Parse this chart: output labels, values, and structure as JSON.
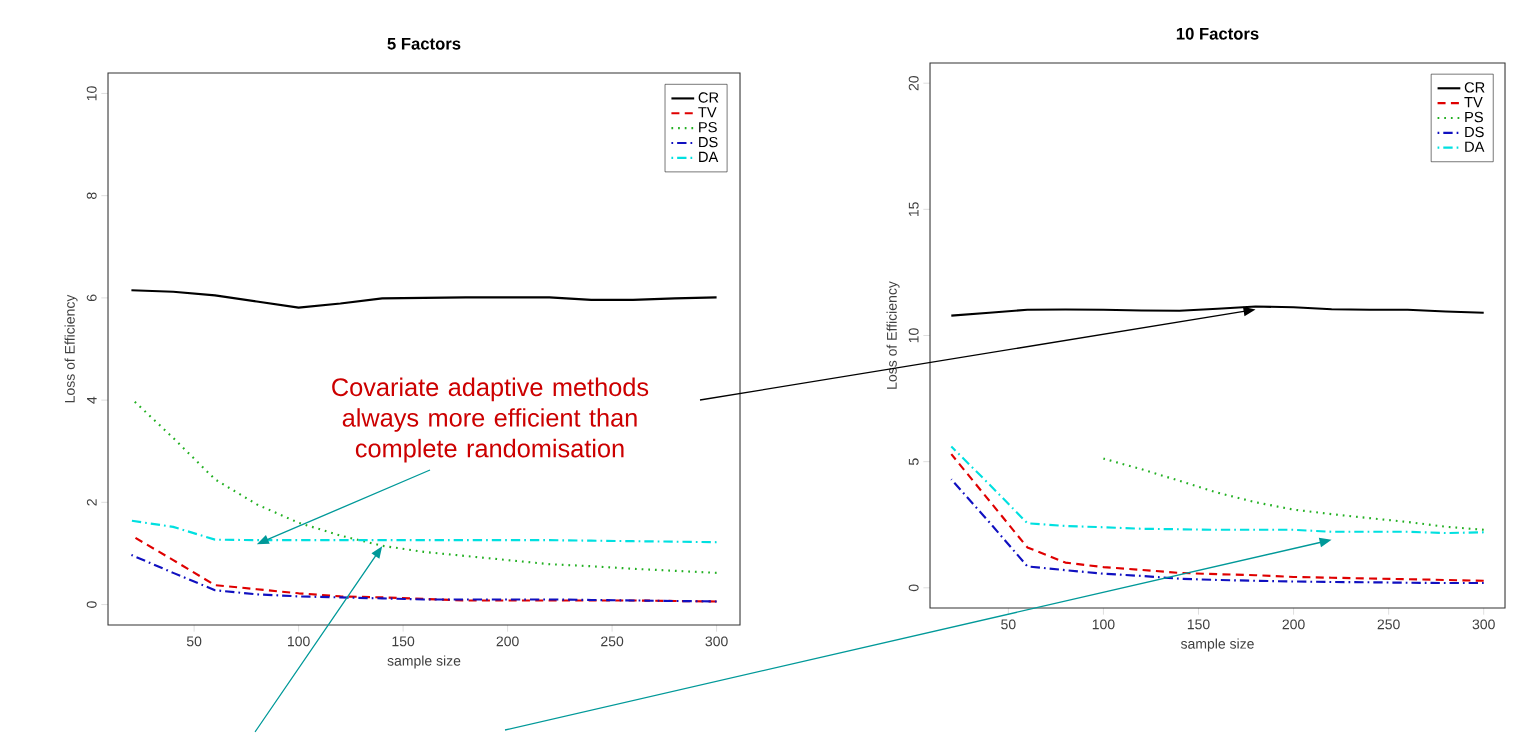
{
  "chart_data": [
    {
      "type": "line",
      "title": "5 Factors",
      "xlabel": "sample size",
      "ylabel": "Loss of Efficiency",
      "x": [
        20,
        40,
        60,
        80,
        100,
        120,
        140,
        160,
        180,
        200,
        220,
        240,
        260,
        280,
        300
      ],
      "xlim": [
        8.8,
        311.2
      ],
      "xticks": [
        50,
        100,
        150,
        200,
        250,
        300
      ],
      "ylim": [
        -0.4,
        10.4
      ],
      "yticks": [
        0,
        2,
        4,
        6,
        8,
        10
      ],
      "grid": false,
      "legend": "top right",
      "series": [
        {
          "name": "CR",
          "color": "#000000",
          "line_style": "solid",
          "values": [
            6.15,
            6.12,
            6.05,
            5.93,
            5.81,
            5.89,
            5.99,
            6.0,
            6.01,
            6.01,
            6.01,
            5.96,
            5.96,
            5.99,
            6.01
          ]
        },
        {
          "name": "TV",
          "color": "#df0000",
          "line_style": "dashed",
          "values": [
            1.35,
            0.87,
            0.38,
            0.3,
            0.22,
            0.16,
            0.14,
            0.11,
            0.08,
            0.08,
            0.08,
            0.08,
            0.08,
            0.07,
            0.06
          ]
        },
        {
          "name": "PS",
          "color": "#22b022",
          "line_style": "dotted",
          "values": [
            4.03,
            3.26,
            2.45,
            1.96,
            1.6,
            1.35,
            1.15,
            1.03,
            0.95,
            0.87,
            0.79,
            0.75,
            0.7,
            0.66,
            0.62
          ]
        },
        {
          "name": "DS",
          "color": "#1010c0",
          "line_style": "dashdot",
          "values": [
            0.97,
            0.62,
            0.28,
            0.2,
            0.16,
            0.14,
            0.12,
            0.1,
            0.1,
            0.1,
            0.1,
            0.09,
            0.08,
            0.07,
            0.06
          ]
        },
        {
          "name": "DA",
          "color": "#00e0e0",
          "line_style": "dashdot",
          "values": [
            1.64,
            1.52,
            1.27,
            1.26,
            1.26,
            1.26,
            1.26,
            1.26,
            1.26,
            1.26,
            1.26,
            1.25,
            1.24,
            1.23,
            1.22
          ]
        }
      ]
    },
    {
      "type": "line",
      "title": "10 Factors",
      "xlabel": "sample size",
      "ylabel": "Loss of Efficiency",
      "x": [
        20,
        40,
        60,
        80,
        100,
        120,
        140,
        160,
        180,
        200,
        220,
        240,
        260,
        280,
        300
      ],
      "xlim": [
        8.8,
        311.2
      ],
      "xticks": [
        50,
        100,
        150,
        200,
        250,
        300
      ],
      "ylim": [
        -0.8,
        20.8
      ],
      "yticks": [
        0,
        5,
        10,
        15,
        20
      ],
      "grid": false,
      "legend": "top right",
      "annotations": [
        "Covariate adaptive methods always more efficient than complete randomisation"
      ],
      "series": [
        {
          "name": "CR",
          "color": "#000000",
          "line_style": "solid",
          "values": [
            10.79,
            10.9,
            11.02,
            11.03,
            11.02,
            10.99,
            10.98,
            11.06,
            11.15,
            11.12,
            11.04,
            11.02,
            11.02,
            10.95,
            10.9
          ]
        },
        {
          "name": "TV",
          "color": "#df0000",
          "line_style": "dashed",
          "values": [
            5.3,
            3.45,
            1.6,
            1.0,
            0.82,
            0.71,
            0.59,
            0.54,
            0.5,
            0.43,
            0.4,
            0.37,
            0.34,
            0.31,
            0.28
          ]
        },
        {
          "name": "PS",
          "color": "#22b022",
          "line_style": "dotted",
          "values": [
            null,
            null,
            null,
            null,
            5.12,
            4.7,
            4.24,
            3.77,
            3.39,
            3.1,
            2.92,
            2.76,
            2.61,
            2.42,
            2.3
          ]
        },
        {
          "name": "DS",
          "color": "#1010c0",
          "line_style": "dashdot",
          "values": [
            4.3,
            2.6,
            0.85,
            0.7,
            0.56,
            0.47,
            0.36,
            0.31,
            0.28,
            0.25,
            0.23,
            0.22,
            0.2,
            0.19,
            0.19
          ]
        },
        {
          "name": "DA",
          "color": "#00e0e0",
          "line_style": "dashdot",
          "values": [
            5.6,
            4.1,
            2.56,
            2.45,
            2.4,
            2.34,
            2.32,
            2.3,
            2.3,
            2.3,
            2.22,
            2.22,
            2.22,
            2.17,
            2.2
          ]
        }
      ]
    }
  ]
}
